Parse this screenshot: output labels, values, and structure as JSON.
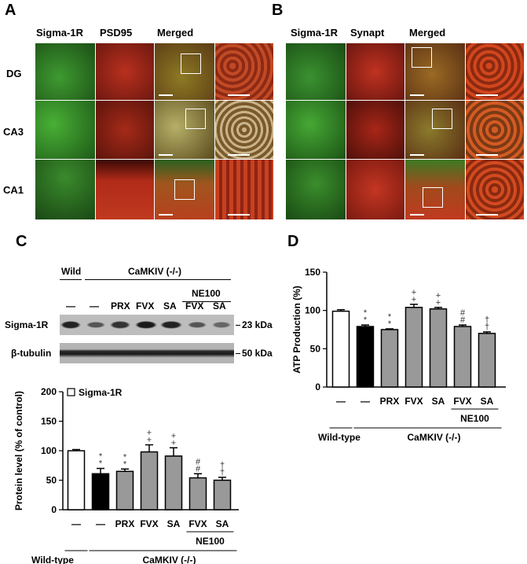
{
  "panel_a": {
    "letter": "A",
    "columns": [
      "Sigma-1R",
      "PSD95",
      "Merged"
    ],
    "rows": [
      "DG",
      "CA3",
      "CA1"
    ]
  },
  "panel_b": {
    "letter": "B",
    "columns": [
      "Sigma-1R",
      "Synapt",
      "Merged"
    ]
  },
  "panel_c": {
    "letter": "C",
    "blot": {
      "group_wild": "Wild",
      "group_ko": "CaMKIV (-/-)",
      "group_ne": "NE100",
      "lanes": [
        "—",
        "—",
        "PRX",
        "FVX",
        "SA",
        "FVX",
        "SA"
      ],
      "rows": [
        "Sigma-1R",
        "β-tubulin"
      ],
      "markers": [
        "23 kDa",
        "50 kDa"
      ]
    },
    "chart_data": {
      "type": "bar",
      "legend": "Sigma-1R",
      "ylabel": "Protein level (% of control)",
      "ylim": [
        0,
        200
      ],
      "yticks": [
        "0",
        "50",
        "100",
        "150",
        "200"
      ],
      "categories": [
        "—",
        "—",
        "PRX",
        "FVX",
        "SA",
        "FVX",
        "SA"
      ],
      "values": [
        100,
        61,
        65,
        98,
        91,
        54,
        50
      ],
      "errors": [
        2,
        9,
        4,
        12,
        14,
        7,
        5
      ],
      "fills": [
        "#ffffff",
        "#000000",
        "#999999",
        "#999999",
        "#999999",
        "#999999",
        "#999999"
      ],
      "marks": [
        "",
        "**",
        "**",
        "++",
        "++",
        "##",
        "††"
      ],
      "group_ne": "NE100",
      "group_wt": "Wild-type",
      "group_ko": "CaMKIV (-/-)"
    }
  },
  "panel_d": {
    "letter": "D",
    "chart_data": {
      "type": "bar",
      "ylabel": "ATP Production (%)",
      "ylim": [
        0,
        150
      ],
      "yticks": [
        "0",
        "50",
        "100",
        "150"
      ],
      "categories": [
        "—",
        "—",
        "PRX",
        "FVX",
        "SA",
        "FVX",
        "SA"
      ],
      "values": [
        99,
        79,
        75,
        104,
        102,
        79,
        70
      ],
      "errors": [
        2,
        2,
        1,
        4,
        2,
        2,
        2
      ],
      "fills": [
        "#ffffff",
        "#000000",
        "#999999",
        "#999999",
        "#999999",
        "#999999",
        "#999999"
      ],
      "marks": [
        "",
        "**",
        "**",
        "++",
        "++",
        "##",
        "††"
      ],
      "group_ne": "NE100",
      "group_wt": "Wild-type",
      "group_ko": "CaMKIV (-/-)"
    }
  },
  "colors": {
    "green": "#2f7a2a",
    "red": "#a8271a",
    "merged": "#8a5a1e",
    "bar_gray": "#999999"
  }
}
